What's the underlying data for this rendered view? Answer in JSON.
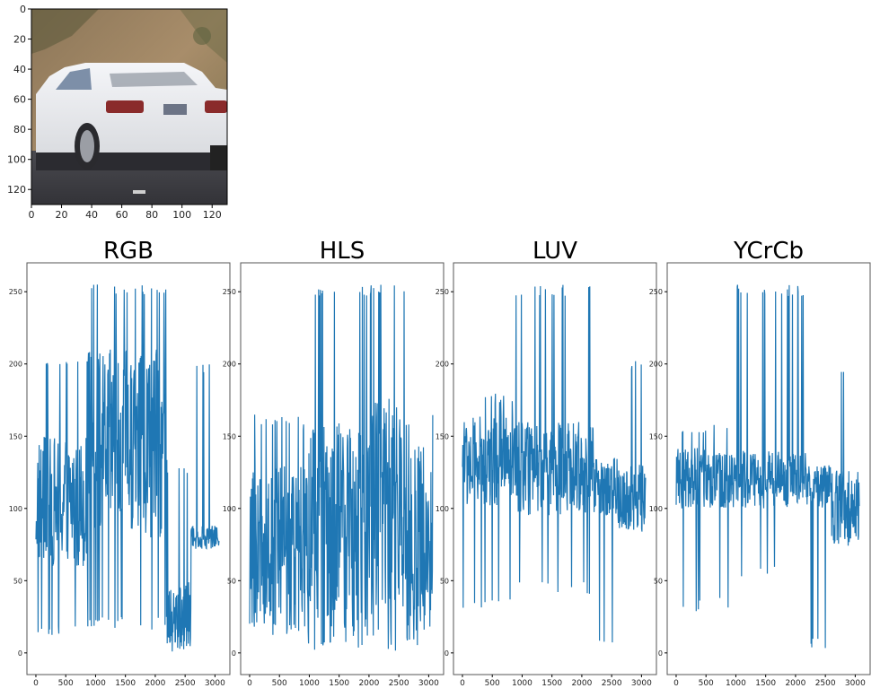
{
  "figure": {
    "image_panel": {
      "subject": "white sedan car rear view on road",
      "colors": {
        "sky_hill": "#9a8363",
        "road": "#3f3f45",
        "car_body": "#ecedf0",
        "tail_light": "#8a2b2b"
      },
      "xlim": [
        0,
        130
      ],
      "ylim": [
        130,
        0
      ],
      "x_ticks": [
        0,
        20,
        40,
        60,
        80,
        100,
        120
      ],
      "y_ticks": [
        0,
        20,
        40,
        60,
        80,
        100,
        120
      ]
    }
  },
  "chart_data": [
    {
      "type": "line",
      "title": "RGB",
      "color": "#1f77b4",
      "xlim": [
        -150,
        3250
      ],
      "ylim": [
        -15,
        270
      ],
      "x_ticks": [
        0,
        500,
        1000,
        1500,
        2000,
        2500,
        3000
      ],
      "y_ticks": [
        0,
        50,
        100,
        150,
        200,
        250
      ],
      "grid": false,
      "segments": [
        {
          "x0": 0,
          "x1": 880,
          "lo": 60,
          "hi": 150,
          "spikeHi": 205,
          "spikeLo": 10
        },
        {
          "x0": 880,
          "x1": 2200,
          "lo": 80,
          "hi": 210,
          "spikeHi": 255,
          "spikeLo": 15
        },
        {
          "x0": 2200,
          "x1": 2600,
          "lo": 0,
          "hi": 50,
          "spikeHi": 130,
          "spikeLo": 0
        },
        {
          "x0": 2600,
          "x1": 3070,
          "lo": 72,
          "hi": 88,
          "spikeHi": 200,
          "spikeLo": 70
        }
      ]
    },
    {
      "type": "line",
      "title": "HLS",
      "color": "#1f77b4",
      "xlim": [
        -150,
        3250
      ],
      "ylim": [
        -15,
        270
      ],
      "x_ticks": [
        0,
        500,
        1000,
        1500,
        2000,
        2500,
        3000
      ],
      "y_ticks": [
        0,
        50,
        100,
        150,
        200,
        250
      ],
      "grid": false,
      "segments": [
        {
          "x0": 0,
          "x1": 880,
          "lo": 15,
          "hi": 130,
          "spikeHi": 165,
          "spikeLo": 12
        },
        {
          "x0": 880,
          "x1": 2000,
          "lo": 5,
          "hi": 160,
          "spikeHi": 255,
          "spikeLo": 0
        },
        {
          "x0": 2000,
          "x1": 2600,
          "lo": 3,
          "hi": 180,
          "spikeHi": 255,
          "spikeLo": 0
        },
        {
          "x0": 2600,
          "x1": 3070,
          "lo": 8,
          "hi": 145,
          "spikeHi": 165,
          "spikeLo": 3
        }
      ]
    },
    {
      "type": "line",
      "title": "LUV",
      "color": "#1f77b4",
      "xlim": [
        -150,
        3250
      ],
      "ylim": [
        -15,
        270
      ],
      "x_ticks": [
        0,
        500,
        1000,
        1500,
        2000,
        2500,
        3000
      ],
      "y_ticks": [
        0,
        50,
        100,
        150,
        200,
        250
      ],
      "grid": false,
      "segments": [
        {
          "x0": 0,
          "x1": 880,
          "lo": 100,
          "hi": 165,
          "spikeHi": 180,
          "spikeLo": 28
        },
        {
          "x0": 880,
          "x1": 2200,
          "lo": 95,
          "hi": 160,
          "spikeHi": 255,
          "spikeLo": 40
        },
        {
          "x0": 2200,
          "x1": 2600,
          "lo": 95,
          "hi": 135,
          "spikeHi": 135,
          "spikeLo": 0
        },
        {
          "x0": 2600,
          "x1": 3070,
          "lo": 85,
          "hi": 132,
          "spikeHi": 203,
          "spikeLo": 80
        }
      ]
    },
    {
      "type": "line",
      "title": "YCrCb",
      "color": "#1f77b4",
      "xlim": [
        -150,
        3250
      ],
      "ylim": [
        -15,
        270
      ],
      "x_ticks": [
        0,
        500,
        1000,
        1500,
        2000,
        2500,
        3000
      ],
      "y_ticks": [
        0,
        50,
        100,
        150,
        200,
        250
      ],
      "grid": false,
      "segments": [
        {
          "x0": 0,
          "x1": 880,
          "lo": 100,
          "hi": 142,
          "spikeHi": 160,
          "spikeLo": 28
        },
        {
          "x0": 880,
          "x1": 2200,
          "lo": 100,
          "hi": 140,
          "spikeHi": 255,
          "spikeLo": 50
        },
        {
          "x0": 2200,
          "x1": 2600,
          "lo": 100,
          "hi": 130,
          "spikeHi": 130,
          "spikeLo": 0
        },
        {
          "x0": 2600,
          "x1": 3070,
          "lo": 75,
          "hi": 130,
          "spikeHi": 197,
          "spikeLo": 72
        }
      ]
    }
  ]
}
